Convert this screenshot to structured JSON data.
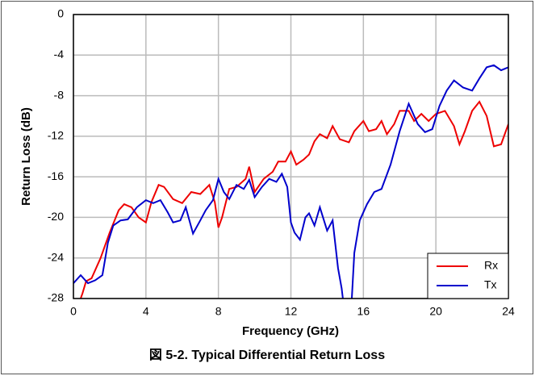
{
  "chart_data": {
    "type": "line",
    "caption": "図 5-2. Typical Differential Return Loss",
    "x_label": "Frequency (GHz)",
    "y_label": "Return Loss (dB)",
    "xlim": [
      0,
      24
    ],
    "xticks": [
      0,
      4,
      8,
      12,
      16,
      20,
      24
    ],
    "ylim": [
      -28,
      0
    ],
    "yticks": [
      0,
      -4,
      -8,
      -12,
      -16,
      -20,
      -24,
      -28
    ],
    "grid": true,
    "legend": "lower right",
    "series": [
      {
        "name": "Rx",
        "color": "#ee0000",
        "x": [
          0,
          0.5,
          0.7,
          1,
          1.5,
          2,
          2.5,
          2.8,
          3.2,
          3.6,
          4,
          4.3,
          4.7,
          5,
          5.5,
          6,
          6.5,
          7,
          7.5,
          7.8,
          8,
          8.2,
          8.6,
          9,
          9.5,
          9.7,
          10,
          10.5,
          11,
          11.3,
          11.7,
          12,
          12.3,
          12.7,
          13,
          13.3,
          13.6,
          14,
          14.3,
          14.7,
          15.2,
          15.5,
          16,
          16.3,
          16.7,
          17,
          17.3,
          17.7,
          18,
          18.5,
          18.8,
          19.2,
          19.6,
          20,
          20.5,
          21,
          21.3,
          21.6,
          22,
          22.4,
          22.8,
          23.2,
          23.6,
          24
        ],
        "values": [
          -30,
          -27.5,
          -26.3,
          -26,
          -24,
          -21.5,
          -19.3,
          -18.7,
          -19,
          -20,
          -20.5,
          -18.5,
          -16.8,
          -17,
          -18.2,
          -18.6,
          -17.5,
          -17.7,
          -16.8,
          -18.5,
          -21,
          -20,
          -17.2,
          -17,
          -16.2,
          -15,
          -17.5,
          -16.2,
          -15.5,
          -14.5,
          -14.5,
          -13.5,
          -14.8,
          -14.3,
          -13.8,
          -12.5,
          -11.8,
          -12.2,
          -11,
          -12.3,
          -12.6,
          -11.5,
          -10.5,
          -11.5,
          -11.3,
          -10.5,
          -11.8,
          -10.8,
          -9.5,
          -9.5,
          -10.5,
          -9.8,
          -10.5,
          -9.8,
          -9.5,
          -11,
          -12.8,
          -11.5,
          -9.5,
          -8.6,
          -10,
          -13,
          -12.8,
          -10.8
        ]
      },
      {
        "name": "Tx",
        "color": "#0000cc",
        "x": [
          0,
          0.4,
          0.8,
          1.2,
          1.6,
          1.9,
          2.2,
          2.6,
          3,
          3.5,
          4,
          4.4,
          4.8,
          5.2,
          5.5,
          5.9,
          6.2,
          6.6,
          7,
          7.3,
          7.7,
          8,
          8.3,
          8.6,
          9,
          9.4,
          9.7,
          10,
          10.4,
          10.8,
          11.2,
          11.5,
          11.8,
          12,
          12.2,
          12.5,
          12.8,
          13,
          13.3,
          13.6,
          14,
          14.3,
          14.6,
          14.8,
          15,
          15.3,
          15.5,
          15.8,
          16.2,
          16.6,
          17,
          17.5,
          18,
          18.5,
          19,
          19.4,
          19.8,
          20.2,
          20.6,
          21,
          21.5,
          22,
          22.4,
          22.8,
          23.2,
          23.6,
          24
        ],
        "values": [
          -26.5,
          -25.7,
          -26.5,
          -26.2,
          -25.7,
          -22.5,
          -20.8,
          -20.3,
          -20.2,
          -19,
          -18.3,
          -18.6,
          -18.3,
          -19.5,
          -20.5,
          -20.3,
          -19,
          -21.6,
          -20.3,
          -19.3,
          -18.3,
          -16.2,
          -17.5,
          -18.2,
          -16.8,
          -17.2,
          -16.3,
          -18,
          -17,
          -16.2,
          -16.5,
          -15.7,
          -17,
          -20.5,
          -21.5,
          -22.2,
          -20,
          -19.6,
          -20.8,
          -19,
          -21.3,
          -20.3,
          -25,
          -27,
          -30,
          -30,
          -23.5,
          -20.3,
          -18.7,
          -17.5,
          -17.2,
          -14.8,
          -11.5,
          -8.8,
          -10.8,
          -11.6,
          -11.3,
          -9,
          -7.5,
          -6.5,
          -7.2,
          -7.5,
          -6.3,
          -5.2,
          -5,
          -5.5,
          -5.2
        ]
      }
    ]
  }
}
